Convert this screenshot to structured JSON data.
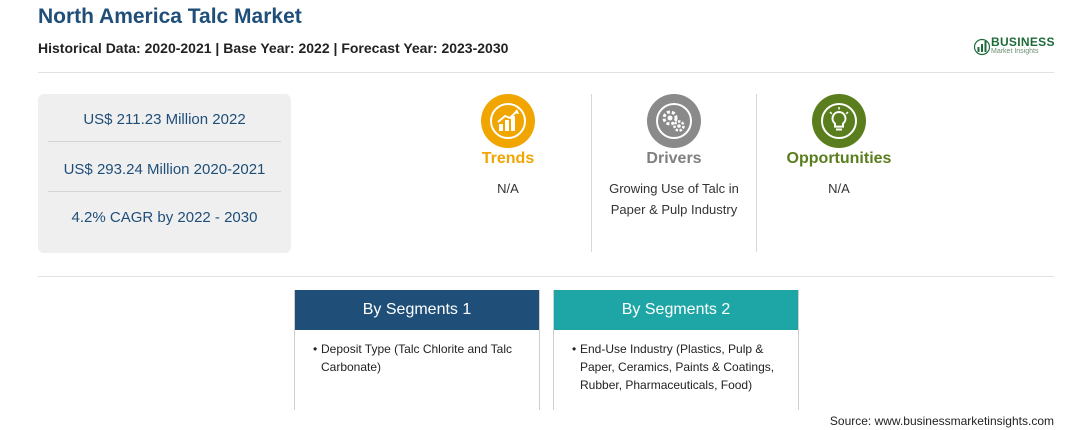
{
  "header": {
    "title": "North America Talc Market",
    "subtitle": "Historical Data: 2020-2021 | Base Year: 2022 | Forecast Year: 2023-2030"
  },
  "logo": {
    "name": "BUSINESS",
    "tagline": "Market Insights",
    "icon": "bar-growth-logo-icon",
    "color": "#1e6b3a"
  },
  "stats": [
    "US$ 211.23 Million 2022",
    "US$ 293.24 Million 2020-2021",
    "4.2% CAGR by 2022 - 2030"
  ],
  "features": {
    "trends": {
      "title": "Trends",
      "desc": "N/A",
      "color": "#f0a500",
      "icon": "chart-growth-icon"
    },
    "drivers": {
      "title": "Drivers",
      "desc": "Growing Use of Talc in Paper & Pulp Industry",
      "color": "#7f7f7f",
      "icon": "gears-icon"
    },
    "opportunities": {
      "title": "Opportunities",
      "desc": "N/A",
      "color": "#5a7d1e",
      "icon": "lightbulb-icon"
    }
  },
  "segments": [
    {
      "title": "By Segments 1",
      "item": "Deposit Type (Talc Chlorite and Talc Carbonate)",
      "color": "#1f4e79"
    },
    {
      "title": "By Segments 2",
      "item": "End-Use Industry (Plastics, Pulp & Paper, Ceramics, Paints & Coatings, Rubber, Pharmaceuticals, Food)",
      "color": "#1ea6a6"
    }
  ],
  "source": "Source: www.businessmarketinsights.com"
}
